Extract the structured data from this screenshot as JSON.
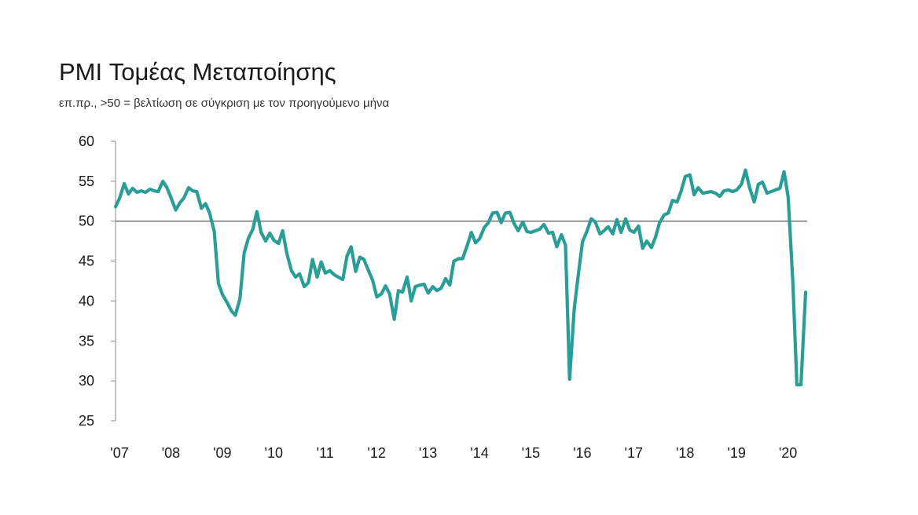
{
  "title": "PMI Τομέας Μεταποίησης",
  "subtitle": "επ.πρ., >50 = βελτίωση σε σύγκριση με τον προηγούμενο μήνα",
  "colors": {
    "line": "#2a9d97",
    "axis": "#8a8a8a",
    "reference": "#666666"
  },
  "chart_data": {
    "type": "line",
    "title": "PMI Τομέας Μεταποίησης",
    "subtitle": "επ.πρ., >50 = βελτίωση σε σύγκριση με τον προηγούμενο μήνα",
    "xlabel": "",
    "ylabel": "",
    "ylim": [
      25,
      60
    ],
    "xlim": [
      2007.0,
      2020.45
    ],
    "reference_line": 50,
    "grid": false,
    "yticks": [
      60,
      55,
      50,
      45,
      40,
      35,
      30,
      25
    ],
    "xtick_labels": [
      "'07",
      "'08",
      "'09",
      "'10",
      "'11",
      "'12",
      "'13",
      "'14",
      "'15",
      "'16",
      "'17",
      "'18",
      "'19",
      "'20"
    ],
    "series": [
      {
        "name": "PMI Τομέας Μεταποίησης",
        "x": [
          2007.0,
          2007.08,
          2007.17,
          2007.25,
          2007.33,
          2007.42,
          2007.5,
          2007.58,
          2007.67,
          2007.75,
          2007.83,
          2007.92,
          2008.0,
          2008.08,
          2008.17,
          2008.25,
          2008.33,
          2008.42,
          2008.5,
          2008.58,
          2008.67,
          2008.75,
          2008.83,
          2008.92,
          2009.0,
          2009.08,
          2009.17,
          2009.25,
          2009.33,
          2009.42,
          2009.5,
          2009.58,
          2009.67,
          2009.75,
          2009.83,
          2009.92,
          2010.0,
          2010.08,
          2010.17,
          2010.25,
          2010.33,
          2010.42,
          2010.5,
          2010.58,
          2010.67,
          2010.75,
          2010.83,
          2010.92,
          2011.0,
          2011.08,
          2011.17,
          2011.25,
          2011.33,
          2011.42,
          2011.5,
          2011.58,
          2011.67,
          2011.75,
          2011.83,
          2011.92,
          2012.0,
          2012.08,
          2012.17,
          2012.25,
          2012.33,
          2012.42,
          2012.5,
          2012.58,
          2012.67,
          2012.75,
          2012.83,
          2012.92,
          2013.0,
          2013.08,
          2013.17,
          2013.25,
          2013.33,
          2013.42,
          2013.5,
          2013.58,
          2013.67,
          2013.75,
          2013.83,
          2013.92,
          2014.0,
          2014.08,
          2014.17,
          2014.25,
          2014.33,
          2014.42,
          2014.5,
          2014.58,
          2014.67,
          2014.75,
          2014.83,
          2014.92,
          2015.0,
          2015.08,
          2015.17,
          2015.25,
          2015.33,
          2015.42,
          2015.5,
          2015.58,
          2015.67,
          2015.75,
          2015.83,
          2015.92,
          2016.0,
          2016.08,
          2016.17,
          2016.25,
          2016.33,
          2016.42,
          2016.5,
          2016.58,
          2016.67,
          2016.75,
          2016.83,
          2016.92,
          2017.0,
          2017.08,
          2017.17,
          2017.25,
          2017.33,
          2017.42,
          2017.5,
          2017.58,
          2017.67,
          2017.75,
          2017.83,
          2017.92,
          2018.0,
          2018.08,
          2018.17,
          2018.25,
          2018.33,
          2018.42,
          2018.5,
          2018.58,
          2018.67,
          2018.75,
          2018.83,
          2018.92,
          2019.0,
          2019.08,
          2019.17,
          2019.25,
          2019.33,
          2019.42,
          2019.5,
          2019.58,
          2019.67,
          2019.75,
          2019.83,
          2019.92,
          2020.0,
          2020.08,
          2020.17,
          2020.25,
          2020.33,
          2020.42
        ],
        "values": [
          51.8,
          52.9,
          54.7,
          53.4,
          54.1,
          53.6,
          53.8,
          53.6,
          54.0,
          53.8,
          53.7,
          55.0,
          54.2,
          52.9,
          51.4,
          52.3,
          52.9,
          54.2,
          53.8,
          53.7,
          51.6,
          52.2,
          51.0,
          48.7,
          42.2,
          40.8,
          39.8,
          38.8,
          38.2,
          40.3,
          46.0,
          47.8,
          49.0,
          51.2,
          48.6,
          47.5,
          48.5,
          47.6,
          47.2,
          48.8,
          46.0,
          43.8,
          43.0,
          43.4,
          41.8,
          42.3,
          45.2,
          43.0,
          44.9,
          43.5,
          43.8,
          43.3,
          43.0,
          42.7,
          45.6,
          46.8,
          43.7,
          45.5,
          45.2,
          43.8,
          42.6,
          40.5,
          40.9,
          41.9,
          40.9,
          37.7,
          41.3,
          41.1,
          43.0,
          40.0,
          41.8,
          42.0,
          42.1,
          41.0,
          41.8,
          41.3,
          41.6,
          42.8,
          42.0,
          45.0,
          45.3,
          45.3,
          46.8,
          48.6,
          47.3,
          47.8,
          49.2,
          49.8,
          51.0,
          51.1,
          49.8,
          51.0,
          51.1,
          49.7,
          48.8,
          49.9,
          48.7,
          48.6,
          48.8,
          49.0,
          49.6,
          48.5,
          48.6,
          46.8,
          48.3,
          47.0,
          30.2,
          39.0,
          43.3,
          47.4,
          48.8,
          50.3,
          49.9,
          48.4,
          48.8,
          49.3,
          48.4,
          50.2,
          48.6,
          50.3,
          48.9,
          48.6,
          49.4,
          46.6,
          47.5,
          46.7,
          48.0,
          49.8,
          50.8,
          51.0,
          52.6,
          52.4,
          53.8,
          55.6,
          55.8,
          53.3,
          54.2,
          53.5,
          53.6,
          53.7,
          53.5,
          53.1,
          53.8,
          53.9,
          53.7,
          53.9,
          54.6,
          56.4,
          54.2,
          52.4,
          54.6,
          54.9,
          53.5,
          53.7,
          53.9,
          54.1,
          56.2,
          53.0,
          42.5,
          29.5,
          29.5,
          41.1
        ]
      }
    ]
  }
}
